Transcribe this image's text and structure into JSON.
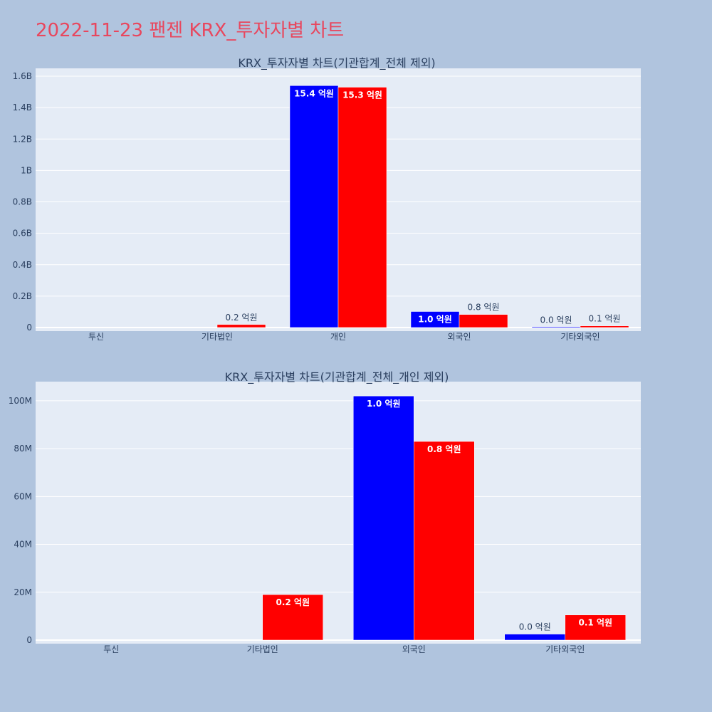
{
  "title": "2022-11-23 팬젠 KRX_투자자별 차트",
  "colors": {
    "sell": "#0000ff",
    "buy": "#ff0000",
    "plot_bg": "#e5ecf6",
    "page_bg": "#b0c4de",
    "title": "#e8475e"
  },
  "chart_data": [
    {
      "type": "bar",
      "title": "KRX_투자자별 차트(기관합계_전체 제외)",
      "categories": [
        "투신",
        "기타법인",
        "개인",
        "외국인",
        "기타외국인"
      ],
      "ylim": [
        0,
        1650000000
      ],
      "yticks": [
        0,
        200000000,
        400000000,
        600000000,
        800000000,
        1000000000,
        1200000000,
        1400000000,
        1600000000
      ],
      "ytick_labels": [
        "0",
        "0.2B",
        "0.4B",
        "0.6B",
        "0.8B",
        "1B",
        "1.2B",
        "1.4B",
        "1.6B"
      ],
      "grid": true,
      "series": [
        {
          "color": "#0000ff",
          "values": [
            0,
            0,
            1540000000,
            102000000,
            2500000
          ],
          "labels": [
            "",
            "",
            "15.4 억원",
            "1.0 억원",
            "0.0 억원"
          ]
        },
        {
          "color": "#ff0000",
          "values": [
            0,
            19000000,
            1530000000,
            83000000,
            10500000
          ],
          "labels": [
            "",
            "0.2 억원",
            "15.3 억원",
            "0.8 억원",
            "0.1 억원"
          ]
        }
      ]
    },
    {
      "type": "bar",
      "title": "KRX_투자자별 차트(기관합계_전체_개인 제외)",
      "categories": [
        "투신",
        "기타법인",
        "외국인",
        "기타외국인"
      ],
      "ylim": [
        0,
        108000000
      ],
      "yticks": [
        0,
        20000000,
        40000000,
        60000000,
        80000000,
        100000000
      ],
      "ytick_labels": [
        "0",
        "20M",
        "40M",
        "60M",
        "80M",
        "100M"
      ],
      "grid": true,
      "series": [
        {
          "color": "#0000ff",
          "values": [
            0,
            0,
            102000000,
            2500000
          ],
          "labels": [
            "",
            "",
            "1.0 억원",
            "0.0 억원"
          ]
        },
        {
          "color": "#ff0000",
          "values": [
            0,
            19000000,
            83000000,
            10500000
          ],
          "labels": [
            "",
            "0.2 억원",
            "0.8 억원",
            "0.1 억원"
          ]
        }
      ]
    }
  ]
}
